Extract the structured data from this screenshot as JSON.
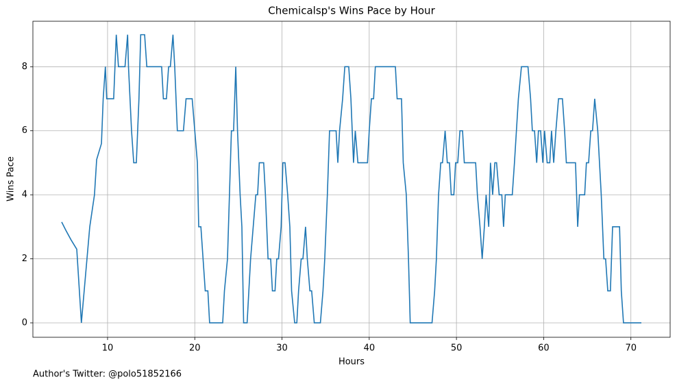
{
  "chart_data": {
    "type": "line",
    "title": "Chemicalsp's Wins Pace by Hour",
    "x_label": "Hours",
    "y_label": "Wins Pace",
    "note": "Author's Twitter: @polo51852166",
    "grid": true,
    "xlim": [
      1.44,
      74.5
    ],
    "ylim": [
      -0.45,
      9.42
    ],
    "xticks": [
      10,
      20,
      30,
      40,
      50,
      60,
      70
    ],
    "yticks": [
      0,
      2,
      4,
      6,
      8
    ],
    "series": [
      {
        "color": "#1f77b4",
        "x": [
          4.74,
          5.2,
          5.8,
          6.47,
          7.0,
          7.96,
          8.5,
          8.75,
          9.3,
          9.5,
          9.75,
          9.9,
          10.7,
          11.0,
          11.25,
          12.0,
          12.3,
          12.4,
          12.75,
          13.0,
          13.3,
          13.6,
          13.8,
          14.25,
          14.5,
          16.2,
          16.4,
          16.75,
          17.0,
          17.2,
          17.5,
          17.7,
          18.0,
          18.7,
          19.0,
          19.7,
          20.0,
          20.3,
          20.45,
          20.7,
          21.2,
          21.5,
          21.7,
          23.2,
          23.4,
          23.75,
          24.2,
          24.45,
          24.7,
          24.9,
          25.2,
          25.4,
          25.6,
          26.0,
          26.4,
          26.7,
          27.0,
          27.2,
          27.4,
          27.9,
          28.1,
          28.4,
          28.7,
          28.9,
          29.2,
          29.4,
          29.6,
          29.9,
          30.1,
          30.35,
          30.65,
          30.9,
          31.1,
          31.45,
          31.7,
          31.9,
          32.2,
          32.4,
          32.7,
          32.9,
          33.2,
          33.4,
          33.7,
          34.4,
          34.7,
          34.9,
          35.2,
          35.45,
          36.2,
          36.4,
          36.6,
          36.95,
          37.2,
          37.65,
          37.9,
          38.2,
          38.4,
          38.7,
          39.8,
          40.0,
          40.25,
          40.5,
          40.7,
          43.0,
          43.2,
          43.7,
          43.9,
          44.25,
          44.5,
          44.7,
          47.2,
          47.5,
          47.7,
          47.95,
          48.2,
          48.4,
          48.7,
          48.95,
          49.2,
          49.4,
          49.7,
          49.9,
          50.15,
          50.4,
          50.7,
          50.9,
          52.2,
          52.4,
          52.7,
          52.95,
          53.2,
          53.4,
          53.7,
          53.9,
          54.15,
          54.4,
          54.6,
          54.9,
          55.2,
          55.4,
          55.6,
          56.4,
          56.65,
          57.1,
          57.45,
          58.2,
          58.5,
          58.7,
          58.95,
          59.2,
          59.4,
          59.65,
          59.9,
          60.1,
          60.4,
          60.7,
          60.9,
          61.15,
          61.4,
          61.7,
          62.15,
          62.4,
          62.6,
          63.65,
          63.9,
          64.1,
          64.7,
          64.9,
          65.15,
          65.4,
          65.6,
          65.85,
          66.2,
          66.6,
          66.9,
          67.1,
          67.35,
          67.65,
          67.9,
          68.7,
          68.9,
          69.15,
          71.2
        ],
        "values": [
          3.15,
          2.9,
          2.6,
          2.3,
          0,
          3,
          4,
          5.1,
          5.6,
          7,
          8,
          7,
          7,
          9,
          8,
          8,
          9,
          8,
          6,
          5,
          5,
          7,
          9,
          9,
          8,
          8,
          7,
          7,
          8,
          8,
          9,
          8,
          6,
          6,
          7,
          7,
          6,
          5,
          3,
          3,
          1,
          1,
          0,
          0,
          1,
          2,
          6,
          6,
          8,
          6,
          4,
          3,
          0,
          0,
          2,
          3,
          4,
          4,
          5,
          5,
          4,
          2,
          2,
          1,
          1,
          2,
          2,
          3,
          5,
          5,
          4,
          3,
          1,
          0,
          0,
          1,
          2,
          2,
          3,
          2,
          1,
          1,
          0,
          0,
          1,
          2,
          4,
          6,
          6,
          5,
          6,
          7,
          8,
          8,
          7,
          5,
          6,
          5,
          5,
          6,
          7,
          7,
          8,
          8,
          7,
          7,
          5,
          4,
          2,
          0,
          0,
          1,
          2,
          4,
          5,
          5,
          6,
          5,
          5,
          4,
          4,
          5,
          5,
          6,
          6,
          5,
          5,
          4,
          3,
          2,
          3,
          4,
          3,
          5,
          4,
          5,
          5,
          4,
          4,
          3,
          4,
          4,
          5,
          7,
          8,
          8,
          7,
          6,
          6,
          5,
          6,
          6,
          5,
          6,
          5,
          5,
          6,
          5,
          6,
          7,
          7,
          6,
          5,
          5,
          3,
          4,
          4,
          5,
          5,
          6,
          6,
          7,
          6,
          4,
          2,
          2,
          1,
          1,
          3,
          3,
          1,
          0,
          0
        ]
      }
    ]
  }
}
